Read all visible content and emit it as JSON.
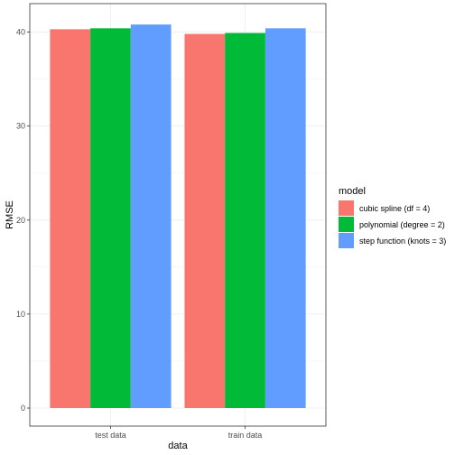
{
  "chart_data": {
    "type": "bar",
    "xlabel": "data",
    "ylabel": "RMSE",
    "categories": [
      "test data",
      "train data"
    ],
    "series": [
      {
        "name": "cubic spline (df = 4)",
        "color": "#F8766D",
        "values": [
          40.3,
          39.8
        ]
      },
      {
        "name": "polynomial (degree = 2)",
        "color": "#00BA38",
        "values": [
          40.4,
          39.9
        ]
      },
      {
        "name": "step function (knots = 3)",
        "color": "#619CFF",
        "values": [
          40.8,
          40.4
        ]
      }
    ],
    "ylim": [
      0,
      42
    ],
    "yticks": [
      0,
      10,
      20,
      30,
      40
    ],
    "legend": {
      "title": "model",
      "position": "right"
    },
    "grid": true
  }
}
